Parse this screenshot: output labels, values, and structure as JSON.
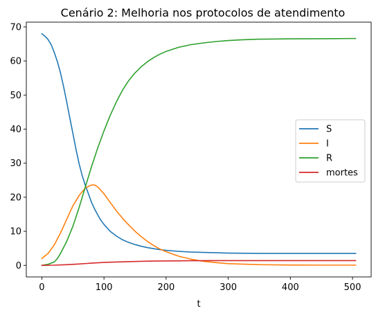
{
  "chart_data": {
    "type": "line",
    "title": "Cenário 2: Melhoria nos protocolos de atendimento",
    "xlabel": "t",
    "ylabel": "",
    "xlim": [
      -25,
      530
    ],
    "ylim": [
      -3.4,
      71.4
    ],
    "xticks": [
      0,
      100,
      200,
      300,
      400,
      500
    ],
    "yticks": [
      0,
      10,
      20,
      30,
      40,
      50,
      60,
      70
    ],
    "grid": false,
    "legend_position": "center-right",
    "series": [
      {
        "name": "S",
        "color": "#1f77b4",
        "x": [
          0,
          5,
          10,
          15,
          20,
          25,
          30,
          35,
          40,
          45,
          50,
          55,
          60,
          65,
          70,
          75,
          80,
          85,
          90,
          95,
          100,
          110,
          120,
          130,
          140,
          150,
          160,
          170,
          180,
          190,
          200,
          220,
          240,
          260,
          280,
          300,
          350,
          400,
          450,
          505
        ],
        "y": [
          68,
          67.3,
          66.3,
          64.8,
          62.5,
          59.8,
          56.5,
          52.5,
          48,
          43.3,
          38.7,
          34,
          29.8,
          26.3,
          23.5,
          21,
          18.5,
          16.5,
          14.8,
          13.2,
          12,
          10,
          8.6,
          7.5,
          6.7,
          6.1,
          5.6,
          5.2,
          4.9,
          4.6,
          4.4,
          4.1,
          3.9,
          3.8,
          3.7,
          3.6,
          3.5,
          3.5,
          3.5,
          3.5
        ]
      },
      {
        "name": "I",
        "color": "#ff7f0e",
        "x": [
          0,
          10,
          20,
          30,
          40,
          50,
          60,
          70,
          80,
          85,
          90,
          100,
          110,
          120,
          130,
          140,
          150,
          160,
          170,
          180,
          190,
          200,
          220,
          240,
          260,
          280,
          300,
          350,
          400,
          450,
          505
        ],
        "y": [
          2,
          3.5,
          6,
          9.5,
          13.5,
          17.5,
          20.5,
          22.7,
          23.6,
          23.6,
          23,
          21,
          18.5,
          16,
          13.8,
          11.8,
          10,
          8.4,
          7,
          5.8,
          4.8,
          4,
          2.7,
          1.8,
          1.2,
          0.8,
          0.5,
          0.2,
          0.1,
          0.05,
          0.05
        ]
      },
      {
        "name": "R",
        "color": "#2ca02c",
        "x": [
          0,
          10,
          20,
          25,
          30,
          40,
          50,
          60,
          70,
          80,
          90,
          100,
          110,
          120,
          130,
          140,
          150,
          160,
          170,
          180,
          190,
          200,
          220,
          240,
          260,
          280,
          300,
          320,
          350,
          400,
          450,
          505
        ],
        "y": [
          0,
          0.3,
          1,
          2,
          3.5,
          7,
          11.5,
          17,
          23,
          29,
          34.5,
          39.5,
          44,
          48,
          51.5,
          54.3,
          56.5,
          58.3,
          59.8,
          61,
          62,
          62.8,
          64,
          64.8,
          65.3,
          65.7,
          66,
          66.2,
          66.4,
          66.5,
          66.55,
          66.6
        ]
      },
      {
        "name": "mortes",
        "color": "#d62728",
        "x": [
          0,
          20,
          40,
          60,
          80,
          100,
          120,
          140,
          160,
          180,
          200,
          240,
          280,
          320,
          400,
          505
        ],
        "y": [
          0,
          0.05,
          0.2,
          0.4,
          0.65,
          0.85,
          1,
          1.1,
          1.2,
          1.25,
          1.3,
          1.35,
          1.4,
          1.4,
          1.4,
          1.4
        ]
      }
    ]
  }
}
